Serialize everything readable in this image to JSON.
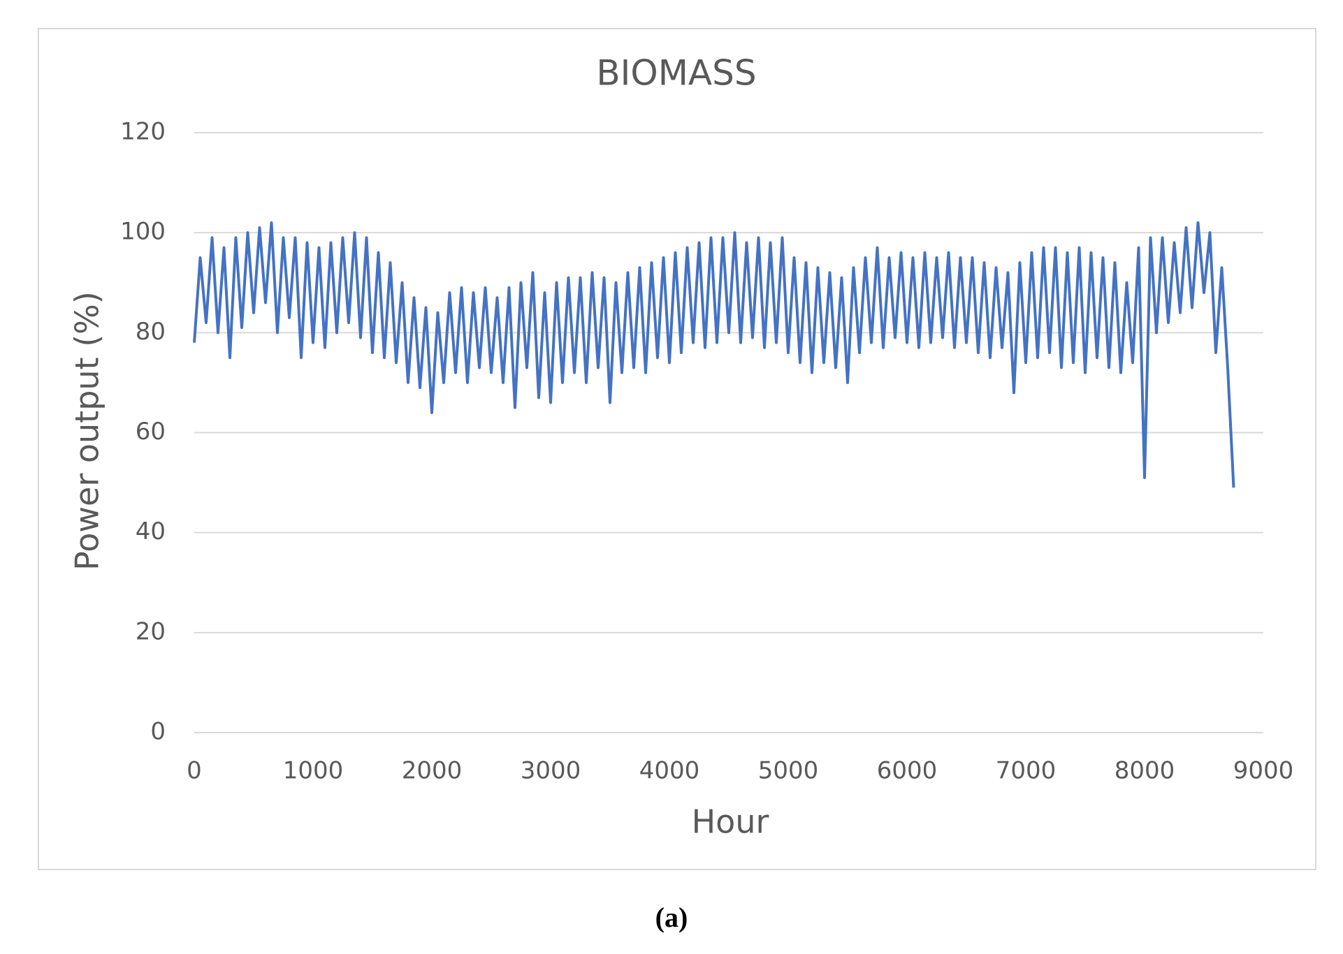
{
  "chart_data": {
    "type": "line",
    "title": "BIOMASS",
    "x_label": "Hour",
    "y_label": "Power output (%)",
    "caption": "(a)",
    "x": [
      0,
      50,
      100,
      150,
      200,
      250,
      300,
      350,
      400,
      450,
      500,
      550,
      600,
      650,
      700,
      750,
      800,
      850,
      900,
      950,
      1000,
      1050,
      1100,
      1150,
      1200,
      1250,
      1300,
      1350,
      1400,
      1450,
      1500,
      1550,
      1600,
      1650,
      1700,
      1750,
      1800,
      1850,
      1900,
      1950,
      2000,
      2050,
      2100,
      2150,
      2200,
      2250,
      2300,
      2350,
      2400,
      2450,
      2500,
      2550,
      2600,
      2650,
      2700,
      2750,
      2800,
      2850,
      2900,
      2950,
      3000,
      3050,
      3100,
      3150,
      3200,
      3250,
      3300,
      3350,
      3400,
      3450,
      3500,
      3550,
      3600,
      3650,
      3700,
      3750,
      3800,
      3850,
      3900,
      3950,
      4000,
      4050,
      4100,
      4150,
      4200,
      4250,
      4300,
      4350,
      4400,
      4450,
      4500,
      4550,
      4600,
      4650,
      4700,
      4750,
      4800,
      4850,
      4900,
      4950,
      5000,
      5050,
      5100,
      5150,
      5200,
      5250,
      5300,
      5350,
      5400,
      5450,
      5500,
      5550,
      5600,
      5650,
      5700,
      5750,
      5800,
      5850,
      5900,
      5950,
      6000,
      6050,
      6100,
      6150,
      6200,
      6250,
      6300,
      6350,
      6400,
      6450,
      6500,
      6550,
      6600,
      6650,
      6700,
      6750,
      6800,
      6850,
      6900,
      6950,
      7000,
      7050,
      7100,
      7150,
      7200,
      7250,
      7300,
      7350,
      7400,
      7450,
      7500,
      7550,
      7600,
      7650,
      7700,
      7750,
      7800,
      7850,
      7900,
      7950,
      8000,
      8050,
      8100,
      8150,
      8200,
      8250,
      8300,
      8350,
      8400,
      8450,
      8500,
      8550,
      8600,
      8650,
      8700,
      8750
    ],
    "series": [
      {
        "color": "#4472c4",
        "values": [
          78,
          95,
          82,
          99,
          80,
          97,
          75,
          99,
          81,
          100,
          84,
          101,
          86,
          102,
          80,
          99,
          83,
          99,
          75,
          98,
          78,
          97,
          77,
          98,
          80,
          99,
          82,
          100,
          79,
          99,
          76,
          96,
          75,
          94,
          74,
          90,
          70,
          87,
          69,
          85,
          64,
          84,
          70,
          88,
          72,
          89,
          70,
          88,
          73,
          89,
          72,
          87,
          70,
          89,
          65,
          90,
          73,
          92,
          67,
          88,
          66,
          90,
          70,
          91,
          72,
          91,
          70,
          92,
          73,
          91,
          66,
          90,
          72,
          92,
          73,
          93,
          72,
          94,
          75,
          95,
          74,
          96,
          76,
          97,
          78,
          98,
          77,
          99,
          78,
          99,
          80,
          100,
          78,
          98,
          79,
          99,
          77,
          98,
          78,
          99,
          76,
          95,
          74,
          94,
          72,
          93,
          74,
          92,
          73,
          91,
          70,
          93,
          76,
          95,
          78,
          97,
          77,
          95,
          79,
          96,
          78,
          95,
          77,
          96,
          78,
          95,
          79,
          96,
          77,
          95,
          78,
          95,
          76,
          94,
          75,
          93,
          77,
          92,
          68,
          94,
          74,
          96,
          75,
          97,
          76,
          97,
          73,
          96,
          74,
          97,
          72,
          96,
          75,
          95,
          73,
          94,
          72,
          90,
          74,
          97,
          51,
          99,
          80,
          99,
          82,
          98,
          84,
          101,
          85,
          102,
          88,
          100,
          76,
          93,
          73,
          49
        ]
      }
    ],
    "xlim": [
      0,
      9000
    ],
    "xticks": [
      0,
      1000,
      2000,
      3000,
      4000,
      5000,
      6000,
      7000,
      8000,
      9000
    ],
    "ylim": [
      0,
      120
    ],
    "yticks": [
      0,
      20,
      40,
      60,
      80,
      100,
      120
    ],
    "grid": true
  }
}
